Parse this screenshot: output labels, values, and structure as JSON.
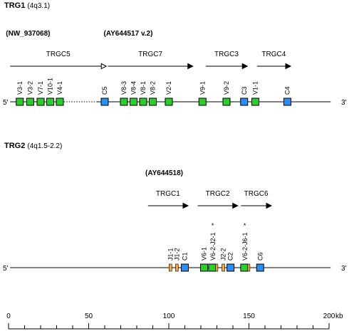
{
  "trg1": {
    "title": "TRG1",
    "location": "(4q3.1)",
    "accessions": [
      {
        "label": "(NW_937068)",
        "pos": 1
      },
      {
        "label": "(AY644517 v.2)",
        "pos": 62
      }
    ],
    "clusters": [
      {
        "label": "TRGC5",
        "start": 1,
        "end": 61,
        "open": true
      },
      {
        "label": "TRGC7",
        "start": 62,
        "end": 115,
        "open": false
      },
      {
        "label": "TRGC3",
        "start": 123,
        "end": 149,
        "open": false
      },
      {
        "label": "TRGC4",
        "start": 155,
        "end": 176,
        "open": false
      }
    ],
    "chromosome": {
      "start": 1,
      "end": 201,
      "dotted": [
        33,
        55
      ]
    },
    "five_prime": "5'",
    "three_prime": "3'",
    "genes": [
      {
        "label": "V3-1",
        "pos": 7,
        "type": "V"
      },
      {
        "label": "V3-2",
        "pos": 13.5,
        "type": "V"
      },
      {
        "label": "V7-1",
        "pos": 20,
        "type": "V"
      },
      {
        "label": "V10-1",
        "pos": 26,
        "type": "V"
      },
      {
        "label": "V4-1",
        "pos": 32,
        "type": "V"
      },
      {
        "label": "C5",
        "pos": 60,
        "type": "C"
      },
      {
        "label": "V8-3",
        "pos": 72,
        "type": "V"
      },
      {
        "label": "V8-4",
        "pos": 78,
        "type": "V"
      },
      {
        "label": "V8-1",
        "pos": 84,
        "type": "V"
      },
      {
        "label": "V8-2",
        "pos": 90,
        "type": "V"
      },
      {
        "label": "V2-1",
        "pos": 100,
        "type": "V"
      },
      {
        "label": "V9-1",
        "pos": 121,
        "type": "V"
      },
      {
        "label": "V9-2",
        "pos": 136,
        "type": "V"
      },
      {
        "label": "C3",
        "pos": 147,
        "type": "C"
      },
      {
        "label": "V1-1",
        "pos": 154,
        "type": "V"
      },
      {
        "label": "C4",
        "pos": 174,
        "type": "C"
      }
    ]
  },
  "trg2": {
    "title": "TRG2",
    "location": "(4q1.5-2.2)",
    "accessions": [
      {
        "label": "(AY644518)",
        "pos": 88
      }
    ],
    "clusters": [
      {
        "label": "TRGC1",
        "start": 87,
        "end": 112,
        "open": false
      },
      {
        "label": "TRGC2",
        "start": 118,
        "end": 143,
        "open": false
      },
      {
        "label": "TRGC6",
        "start": 145,
        "end": 164,
        "open": false
      }
    ],
    "chromosome": {
      "start": 1,
      "end": 201,
      "dotted": []
    },
    "five_prime": "5'",
    "three_prime": "3'",
    "genes": [
      {
        "label": "J1-1",
        "pos": 101,
        "type": "J",
        "star": false
      },
      {
        "label": "J1-2",
        "pos": 105,
        "type": "J",
        "star": false
      },
      {
        "label": "C1",
        "pos": 110,
        "type": "C",
        "star": false
      },
      {
        "label": "V6-1",
        "pos": 122,
        "type": "V",
        "star": false
      },
      {
        "label": "V6-2-J2-1",
        "pos": 127.5,
        "type": "VJ",
        "star": true
      },
      {
        "label": "J2-2",
        "pos": 134,
        "type": "J",
        "star": false
      },
      {
        "label": "C2",
        "pos": 138.5,
        "type": "C",
        "star": false
      },
      {
        "label": "V6-2-J6-1",
        "pos": 147.5,
        "type": "VJ",
        "star": true
      },
      {
        "label": "C6",
        "pos": 157,
        "type": "C",
        "star": false
      }
    ],
    "star_symbol": "*"
  },
  "scale": {
    "min": 0,
    "max": 200,
    "unit": "kb",
    "labels": [
      "0",
      "50",
      "100",
      "150",
      "200"
    ],
    "label_values": [
      0,
      50,
      100,
      150,
      200
    ],
    "minor_step": 10
  },
  "colors": {
    "v_gene": "#2ecc2e",
    "c_gene": "#2b8ef0",
    "j_gene": "#f4a640",
    "line": "#000000"
  }
}
